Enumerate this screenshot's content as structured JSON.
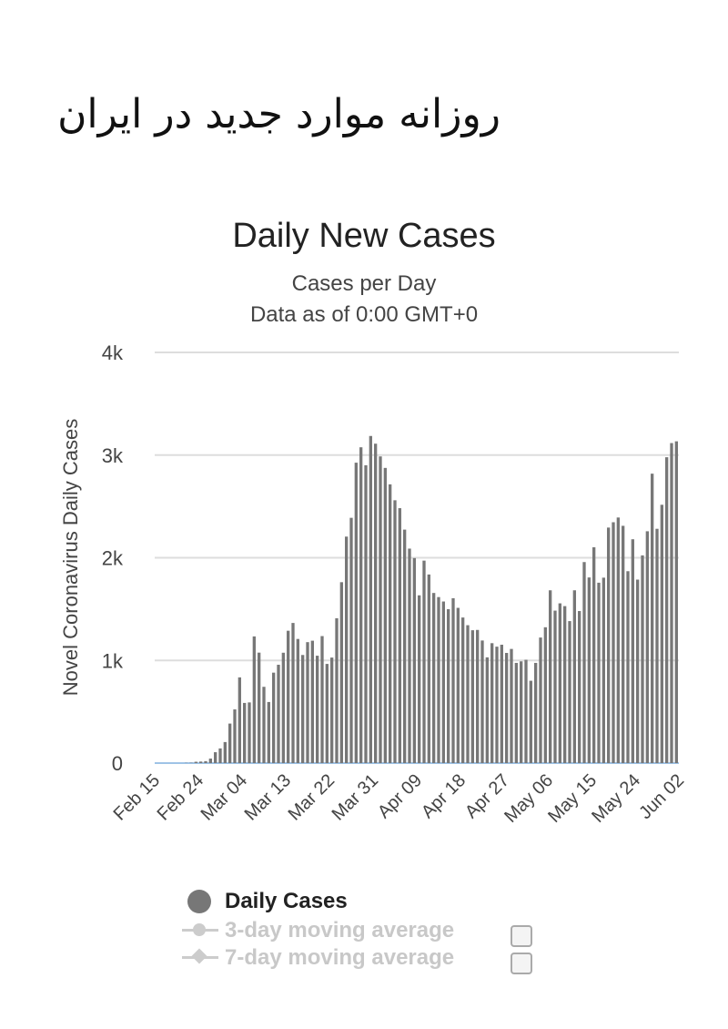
{
  "header": {
    "title": "روزانه موارد جدید در ایران"
  },
  "chart_data": {
    "type": "bar",
    "title": "Daily New Cases",
    "subtitle": "Cases per Day",
    "subtitle2": "Data as of 0:00 GMT+0",
    "ylabel": "Novel Coronavirus Daily Cases",
    "xlabel": "",
    "ylim": [
      0,
      4000
    ],
    "yticks": [
      0,
      1000,
      2000,
      3000,
      4000
    ],
    "ytick_labels": [
      "0",
      "1k",
      "2k",
      "3k",
      "4k"
    ],
    "xtick_labels": [
      "Feb 15",
      "Feb 24",
      "Mar 04",
      "Mar 13",
      "Mar 22",
      "Mar 31",
      "Apr 09",
      "Apr 18",
      "Apr 27",
      "May 06",
      "May 15",
      "May 24",
      "Jun 02"
    ],
    "xtick_step": 9,
    "grid": true,
    "bar_color": "#777777",
    "categories_start": "Feb 15",
    "categories_end": "Jun 04",
    "series": [
      {
        "name": "Daily Cases",
        "values": [
          0,
          0,
          0,
          0,
          0,
          0,
          2,
          3,
          13,
          15,
          19,
          44,
          106,
          143,
          205,
          385,
          523,
          835,
          586,
          591,
          1234,
          1076,
          743,
          595,
          881,
          958,
          1075,
          1289,
          1365,
          1209,
          1053,
          1178,
          1192,
          1046,
          1237,
          966,
          1028,
          1411,
          1762,
          2206,
          2389,
          2926,
          3076,
          2901,
          3186,
          3111,
          2987,
          2875,
          2715,
          2560,
          2483,
          2274,
          2089,
          1997,
          1634,
          1972,
          1837,
          1657,
          1617,
          1574,
          1499,
          1606,
          1512,
          1418,
          1343,
          1294,
          1297,
          1194,
          1030,
          1168,
          1134,
          1153,
          1073,
          1112,
          976,
          991,
          1006,
          802,
          976,
          1223,
          1323,
          1683,
          1485,
          1556,
          1529,
          1383,
          1683,
          1481,
          1958,
          1808,
          2102,
          1757,
          1806,
          2294,
          2346,
          2392,
          2311,
          1869,
          2180,
          1787,
          2023,
          2258,
          2819,
          2282,
          2516,
          2979,
          3117,
          3134
        ]
      }
    ],
    "legend": [
      {
        "label": "Daily Cases",
        "color": "#777777",
        "active": true
      },
      {
        "label": "3-day moving average",
        "color": "#cccccc",
        "active": false
      },
      {
        "label": "7-day moving average",
        "color": "#cccccc",
        "active": false
      }
    ]
  }
}
